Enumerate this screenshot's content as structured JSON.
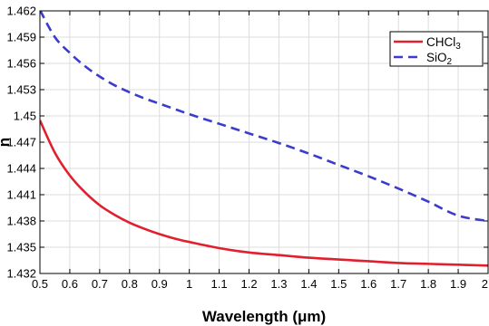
{
  "chart_data": {
    "type": "line",
    "xlabel": "Wavelength (μm)",
    "ylabel": "n",
    "xlim": [
      0.5,
      2.0
    ],
    "ylim": [
      1.432,
      1.462
    ],
    "xticks": [
      0.5,
      0.6,
      0.7,
      0.8,
      0.9,
      1.0,
      1.1,
      1.2,
      1.3,
      1.4,
      1.5,
      1.6,
      1.7,
      1.8,
      1.9,
      2.0
    ],
    "xtick_labels": [
      "0.5",
      "0.6",
      "0.7",
      "0.8",
      "0.9",
      "1",
      "1.1",
      "1.2",
      "1.3",
      "1.4",
      "1.5",
      "1.6",
      "1.7",
      "1.8",
      "1.9",
      "2"
    ],
    "yticks": [
      1.432,
      1.435,
      1.438,
      1.441,
      1.444,
      1.447,
      1.45,
      1.453,
      1.456,
      1.459,
      1.462
    ],
    "ytick_labels": [
      "1.432",
      "1.435",
      "1.438",
      "1.441",
      "1.444",
      "1.447",
      "1.45",
      "1.453",
      "1.456",
      "1.459",
      "1.462"
    ],
    "grid": true,
    "legend_position": "top-right",
    "x": [
      0.5,
      0.55,
      0.6,
      0.65,
      0.7,
      0.75,
      0.8,
      0.85,
      0.9,
      0.95,
      1.0,
      1.1,
      1.2,
      1.3,
      1.4,
      1.5,
      1.6,
      1.7,
      1.8,
      1.9,
      2.0
    ],
    "series": [
      {
        "name": "CHCl",
        "name_subscript": "3",
        "color": "#e0202e",
        "dash": "solid",
        "values": [
          1.4495,
          1.4458,
          1.4432,
          1.4413,
          1.4398,
          1.4387,
          1.4378,
          1.4371,
          1.4365,
          1.436,
          1.4356,
          1.4349,
          1.4344,
          1.4341,
          1.4338,
          1.4336,
          1.4334,
          1.4332,
          1.4331,
          1.433,
          1.4329
        ]
      },
      {
        "name": "SiO",
        "name_subscript": "2",
        "color": "#3b3bcc",
        "dash": "dashed",
        "values": [
          1.4621,
          1.459,
          1.4572,
          1.4557,
          1.4545,
          1.4535,
          1.4527,
          1.452,
          1.4514,
          1.4508,
          1.4502,
          1.4491,
          1.448,
          1.4469,
          1.4457,
          1.4444,
          1.4431,
          1.4417,
          1.4402,
          1.4386,
          1.438
        ]
      }
    ]
  }
}
